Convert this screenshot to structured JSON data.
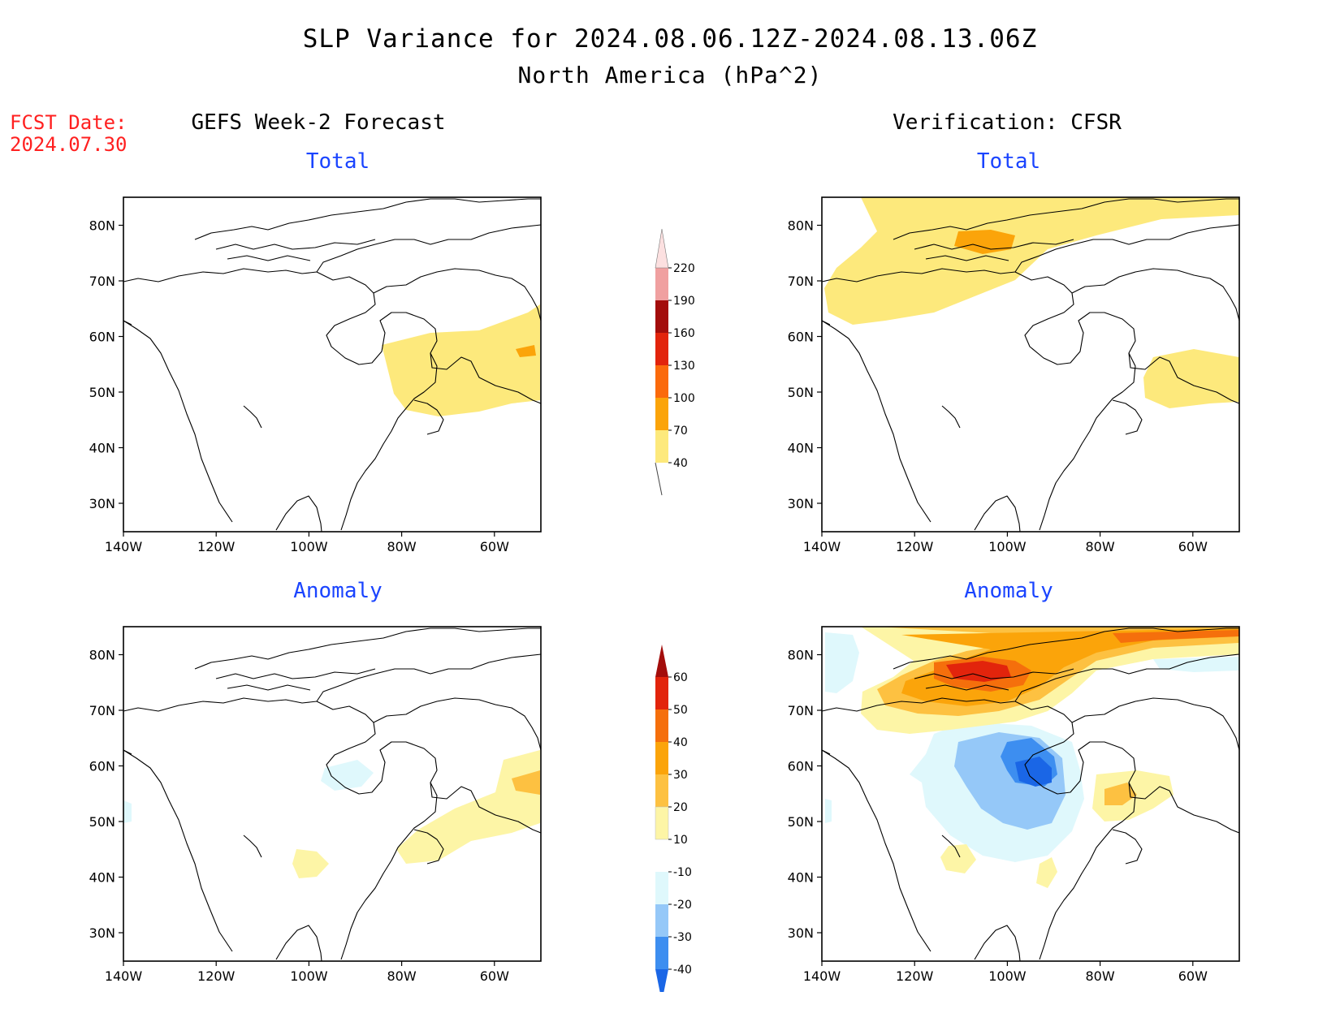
{
  "title": "SLP Variance for 2024.08.06.12Z-2024.08.13.06Z",
  "subtitle": "North America (hPa^2)",
  "fcst_date_label": "FCST Date:",
  "fcst_date_value": "2024.07.30",
  "left_column_title": "GEFS Week-2 Forecast",
  "right_column_title": "Verification: CFSR",
  "panels": {
    "top_left": "Total",
    "top_right": "Total",
    "bottom_left": "Anomaly",
    "bottom_right": "Anomaly"
  },
  "axes": {
    "lat_labels": [
      "80N",
      "70N",
      "60N",
      "50N",
      "40N",
      "30N"
    ],
    "lon_labels": [
      "140W",
      "120W",
      "100W",
      "80W",
      "60W"
    ]
  },
  "colorbars": {
    "total": {
      "levels": [
        "40",
        "70",
        "100",
        "130",
        "160",
        "190",
        "220"
      ],
      "colors": [
        "#fde97c",
        "#fba40a",
        "#fb6a0c",
        "#e2240c",
        "#a30d0b",
        "#f0a0a0",
        "#fce0e0"
      ]
    },
    "anomaly": {
      "levels": [
        "-40",
        "-30",
        "-20",
        "-10",
        "10",
        "20",
        "30",
        "40",
        "50",
        "60"
      ],
      "colors": [
        "#1a66e6",
        "#3d8ef0",
        "#95c8f8",
        "#dff8fc",
        "#ffffff",
        "#fdf5a6",
        "#fdc141",
        "#fba40a",
        "#f56f0c",
        "#e2240c",
        "#a30d0b"
      ]
    }
  },
  "contour_colors": {
    "light_yellow": "#fdf5a6",
    "yellow": "#fde97c",
    "light_orange": "#fdc141",
    "orange": "#fba40a",
    "dark_orange": "#f56f0c",
    "red": "#e2240c",
    "dark_red": "#a30d0b",
    "light_blue": "#dff8fc",
    "sky_blue": "#95c8f8",
    "blue": "#3d8ef0",
    "deep_blue": "#1a66e6"
  }
}
